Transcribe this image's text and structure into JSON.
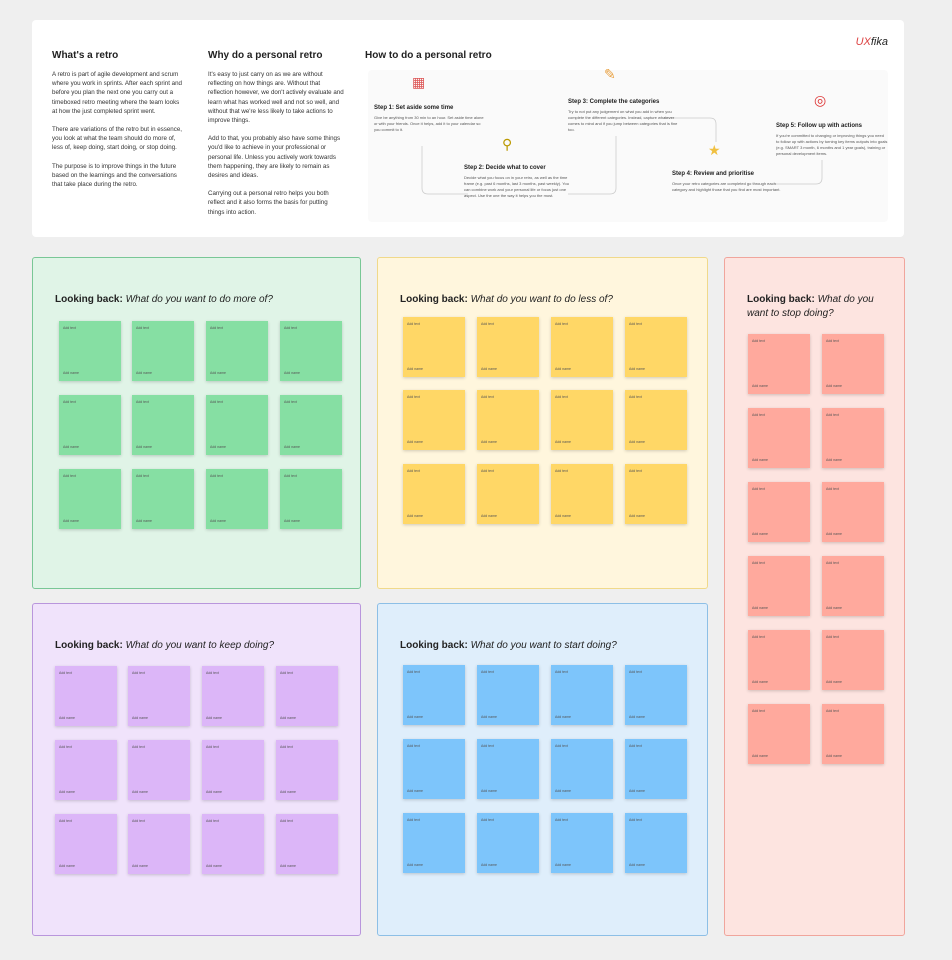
{
  "intro": {
    "title": "What's a retro",
    "paragraphs": [
      "A retro is part of agile development and scrum where you work in sprints. After each sprint and before you plan the next one you carry out a timeboxed retro meeting where the team looks at how the just completed sprint went.",
      "There are variations of the retro but in essence, you look at what the team should do more of, less of, keep doing, start doing, or stop doing.",
      "The purpose is to improve things in the future based on the learnings and the conversations that take place during the retro."
    ]
  },
  "why": {
    "title": "Why do a personal retro",
    "paragraphs": [
      "It's easy to just carry on as we are without reflecting on how things are. Without that reflection however, we don't actively evaluate and learn what has worked well and not so well, and without that we're less likely to take actions to improve things.",
      "Add to that, you probably also have some things you'd like to achieve in your professional or personal life. Unless you actively work towards them happening, they are likely to remain as desires and ideas.",
      "Carrying out a personal retro helps you both reflect and it also forms the basis for putting things into action."
    ]
  },
  "logo": {
    "part1": "UX",
    "part2": "fika"
  },
  "how": {
    "title": "How to do a personal retro",
    "steps": [
      {
        "icon": "calendar-icon",
        "title": "Step 1: Set aside some time",
        "text": "Give be anything from 30 min to an hour. Set aside time alone or with your friends. Once it helps, add it to your calendar so you commit to it."
      },
      {
        "icon": "magnifier-icon",
        "title": "Step 2: Decide what to cover",
        "text": "Decide what you focus on in your retro, as well as the time frame (e.g. past 6 months, last 3 months, past weekly). You can combine work and your personal life or focus just one aspect. Use the one the way it helps you the most."
      },
      {
        "icon": "pencil-icon",
        "title": "Step 3: Complete the categories",
        "text": "Try to not put any judgement on what you add in when you complete the different categories. Instead, capture whatever comes to mind and if you jump between categories that is fine too."
      },
      {
        "icon": "star-icon",
        "title": "Step 4: Review and prioritise",
        "text": "Once your retro categories are completed go through each category and highlight those that you find are most important."
      },
      {
        "icon": "target-icon",
        "title": "Step 5: Follow up with actions",
        "text": "If you're committed to changing or improving things you need to follow up with actions by turning key items outputs into goals (e.g. SMART 3 month, 6 months and 1 year goals), training or personal development items."
      }
    ]
  },
  "panels": [
    {
      "id": "more",
      "bold": "Looking back:",
      "question": "What do you want to do more of?",
      "bg": "#e0f4e7",
      "border": "#79c796",
      "note": "#86dfa3"
    },
    {
      "id": "less",
      "bold": "Looking back:",
      "question": "What do you want to do less of?",
      "bg": "#fff6dd",
      "border": "#f0d98a",
      "note": "#ffd766"
    },
    {
      "id": "stop",
      "bold": "Looking back:",
      "question": "What do you want to stop doing?",
      "bg": "#fde4e0",
      "border": "#f0a59c",
      "note": "#ffa99d"
    },
    {
      "id": "keep",
      "bold": "Looking back:",
      "question": "What do you want to keep doing?",
      "bg": "#f0e3fb",
      "border": "#b996dc",
      "note": "#dcb6f8"
    },
    {
      "id": "start",
      "bold": "Looking back:",
      "question": "What do you want to start doing?",
      "bg": "#dfeefb",
      "border": "#8dbfe6",
      "note": "#7dc5fb"
    }
  ],
  "note": {
    "text": "Add text",
    "name": "Add name"
  }
}
